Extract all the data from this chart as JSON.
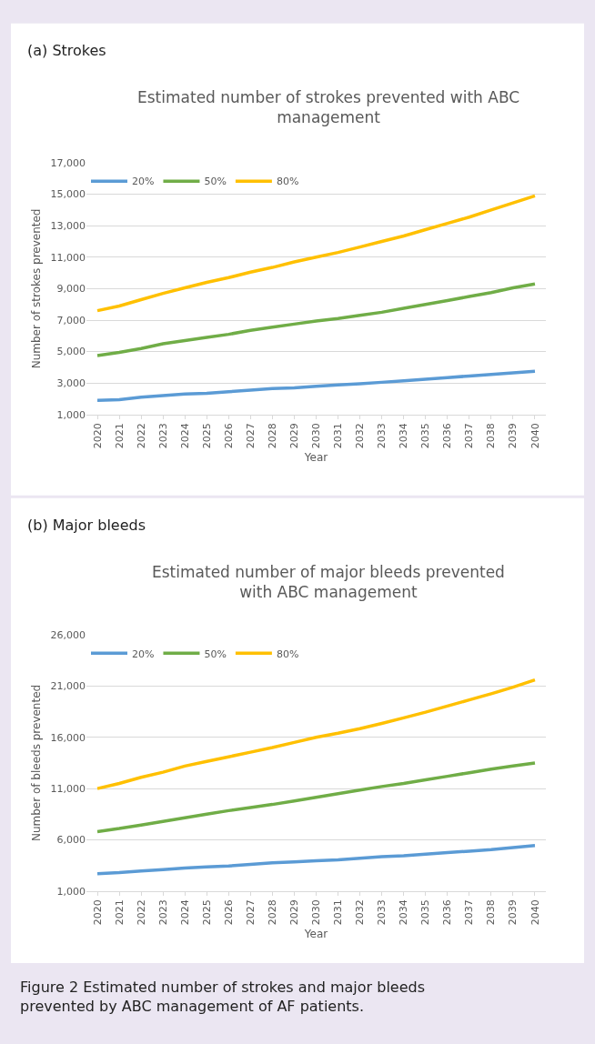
{
  "chart_data": [
    {
      "type": "line",
      "title": "(a) Strokes",
      "subtitle": "Estimated number of strokes prevented with ABC management",
      "xlabel": "Year",
      "ylabel": "Number of strokes prevented",
      "categories": [
        "2020",
        "2021",
        "2022",
        "2023",
        "2024",
        "2025",
        "2026",
        "2027",
        "2028",
        "2029",
        "2030",
        "2031",
        "2032",
        "2033",
        "2034",
        "2035",
        "2036",
        "2037",
        "2038",
        "2039",
        "2040"
      ],
      "series": [
        {
          "name": "20%",
          "color": "#5b9bd5",
          "values": [
            1900,
            1950,
            2100,
            2200,
            2300,
            2350,
            2450,
            2550,
            2650,
            2700,
            2800,
            2880,
            2950,
            3050,
            3150,
            3250,
            3350,
            3450,
            3550,
            3650,
            3750
          ]
        },
        {
          "name": "50%",
          "color": "#70ad47",
          "values": [
            4750,
            4950,
            5200,
            5500,
            5700,
            5900,
            6100,
            6350,
            6550,
            6750,
            6950,
            7100,
            7300,
            7500,
            7750,
            8000,
            8250,
            8500,
            8750,
            9050,
            9300
          ]
        },
        {
          "name": "80%",
          "color": "#ffc000",
          "values": [
            7600,
            7900,
            8300,
            8700,
            9050,
            9400,
            9700,
            10050,
            10350,
            10700,
            11000,
            11300,
            11650,
            12000,
            12350,
            12750,
            13150,
            13550,
            14000,
            14450,
            14900
          ]
        }
      ],
      "ylim": [
        1000,
        17000
      ],
      "yticks": [
        {
          "value": 1000,
          "label": "1,000"
        },
        {
          "value": 3000,
          "label": "3,000"
        },
        {
          "value": 5000,
          "label": "5,000"
        },
        {
          "value": 7000,
          "label": "7,000"
        },
        {
          "value": 9000,
          "label": "9,000"
        },
        {
          "value": 11000,
          "label": "11,000"
        },
        {
          "value": 13000,
          "label": "13,000"
        },
        {
          "value": 15000,
          "label": "15,000"
        },
        {
          "value": 17000,
          "label": "17,000"
        }
      ],
      "grid": "y",
      "legend": "top left",
      "marker": "none",
      "line_style": "solid"
    },
    {
      "type": "line",
      "title": "(b) Major bleeds",
      "subtitle": "Estimated number of major bleeds prevented with ABC management",
      "xlabel": "Year",
      "ylabel": "Number of bleeds prevented",
      "categories": [
        "2020",
        "2021",
        "2022",
        "2023",
        "2024",
        "2025",
        "2026",
        "2027",
        "2028",
        "2029",
        "2030",
        "2031",
        "2032",
        "2033",
        "2034",
        "2035",
        "2036",
        "2037",
        "2038",
        "2039",
        "2040"
      ],
      "series": [
        {
          "name": "20%",
          "color": "#5b9bd5",
          "values": [
            2700,
            2800,
            2950,
            3100,
            3250,
            3350,
            3450,
            3600,
            3750,
            3850,
            3950,
            4050,
            4200,
            4350,
            4450,
            4600,
            4750,
            4900,
            5050,
            5250,
            5450
          ]
        },
        {
          "name": "50%",
          "color": "#70ad47",
          "values": [
            6800,
            7100,
            7450,
            7800,
            8150,
            8500,
            8850,
            9150,
            9450,
            9800,
            10150,
            10500,
            10850,
            11200,
            11500,
            11850,
            12200,
            12550,
            12900,
            13200,
            13500
          ]
        },
        {
          "name": "80%",
          "color": "#ffc000",
          "values": [
            11000,
            11500,
            12100,
            12600,
            13200,
            13650,
            14100,
            14550,
            15000,
            15500,
            16000,
            16400,
            16850,
            17350,
            17900,
            18450,
            19050,
            19650,
            20250,
            20900,
            21600
          ]
        }
      ],
      "ylim": [
        1000,
        26000
      ],
      "yticks": [
        {
          "value": 1000,
          "label": "1,000"
        },
        {
          "value": 6000,
          "label": "6,000"
        },
        {
          "value": 11000,
          "label": "11,000"
        },
        {
          "value": 16000,
          "label": "16,000"
        },
        {
          "value": 21000,
          "label": "21,000"
        },
        {
          "value": 26000,
          "label": "26,000"
        }
      ],
      "grid": "y",
      "legend": "top left",
      "marker": "none",
      "line_style": "solid",
      "annotations": [
        "Figure 2 Estimated number of strokes and major bleeds prevented by ABC management of AF patients."
      ]
    }
  ]
}
